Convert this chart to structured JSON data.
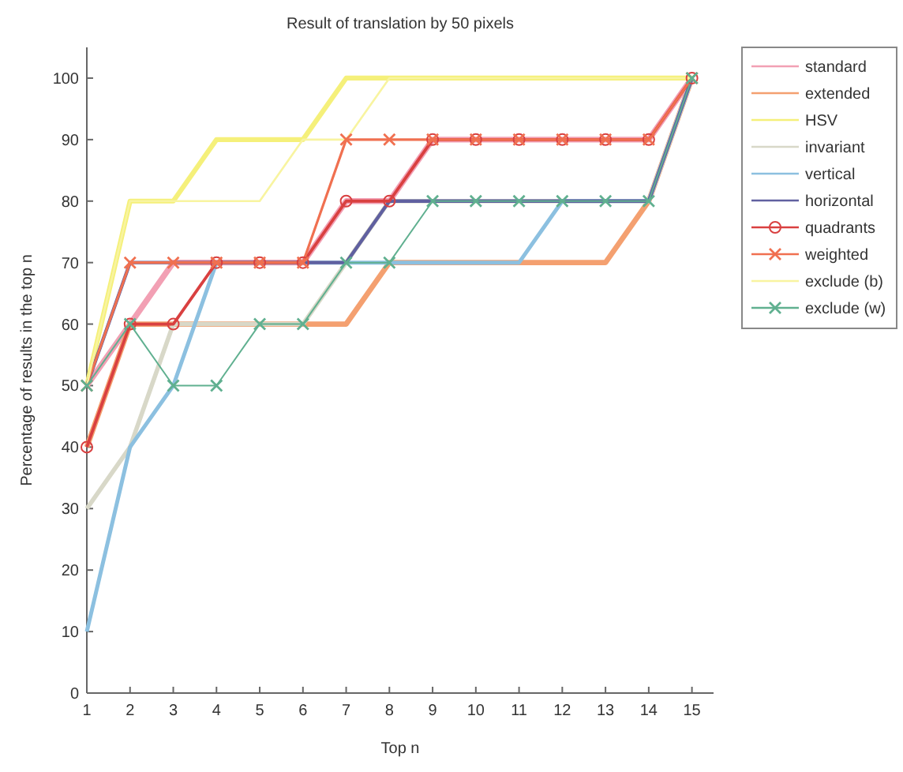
{
  "chart_data": {
    "type": "line",
    "title": "Result of translation by 50 pixels",
    "xlabel": "Top n",
    "ylabel": "Percentage of results in the top n",
    "x": [
      1,
      2,
      3,
      4,
      5,
      6,
      7,
      8,
      9,
      10,
      11,
      12,
      13,
      14,
      15
    ],
    "xlim": [
      1,
      15.5
    ],
    "xticks": [
      1,
      2,
      3,
      4,
      5,
      6,
      7,
      8,
      9,
      10,
      11,
      12,
      13,
      14,
      15
    ],
    "ylim": [
      0,
      105
    ],
    "yticks": [
      0,
      10,
      20,
      30,
      40,
      50,
      60,
      70,
      80,
      90,
      100
    ],
    "grid": false,
    "legend": "top right",
    "series": [
      {
        "name": "standard",
        "color": "#f2a0b4",
        "values": [
          50,
          60,
          70,
          70,
          70,
          70,
          80,
          80,
          90,
          90,
          90,
          90,
          90,
          90,
          100
        ]
      },
      {
        "name": "extended",
        "color": "#f4a070",
        "values": [
          40,
          60,
          60,
          60,
          60,
          60,
          60,
          70,
          70,
          70,
          70,
          70,
          70,
          80,
          100
        ]
      },
      {
        "name": "HSV",
        "color": "#f5f07a",
        "values": [
          50,
          80,
          80,
          90,
          90,
          90,
          100,
          100,
          100,
          100,
          100,
          100,
          100,
          100,
          100
        ]
      },
      {
        "name": "invariant",
        "color": "#d8d8c8",
        "values": [
          30,
          40,
          60,
          60,
          60,
          60,
          70,
          80,
          80,
          80,
          80,
          80,
          80,
          80,
          100
        ]
      },
      {
        "name": "vertical",
        "color": "#8cc0e0",
        "values": [
          10,
          40,
          50,
          70,
          70,
          70,
          70,
          70,
          70,
          70,
          70,
          80,
          80,
          80,
          100
        ]
      },
      {
        "name": "horizontal",
        "color": "#6060a0",
        "values": [
          50,
          70,
          70,
          70,
          70,
          70,
          70,
          80,
          80,
          80,
          80,
          80,
          80,
          80,
          100
        ]
      },
      {
        "name": "quadrants",
        "color": "#d94040",
        "marker": "circle",
        "values": [
          40,
          60,
          60,
          70,
          70,
          70,
          80,
          80,
          90,
          90,
          90,
          90,
          90,
          90,
          100
        ]
      },
      {
        "name": "weighted",
        "color": "#f07050",
        "marker": "cross",
        "values": [
          50,
          70,
          70,
          70,
          70,
          70,
          90,
          90,
          90,
          90,
          90,
          90,
          90,
          90,
          100
        ]
      },
      {
        "name": "exclude (b)",
        "color": "#f8f4a0",
        "values": [
          50,
          80,
          80,
          80,
          80,
          90,
          90,
          100,
          100,
          100,
          100,
          100,
          100,
          100,
          100
        ]
      },
      {
        "name": "exclude (w)",
        "color": "#60b090",
        "marker": "cross",
        "values": [
          50,
          60,
          50,
          50,
          60,
          60,
          70,
          70,
          80,
          80,
          80,
          80,
          80,
          80,
          100
        ]
      }
    ]
  }
}
